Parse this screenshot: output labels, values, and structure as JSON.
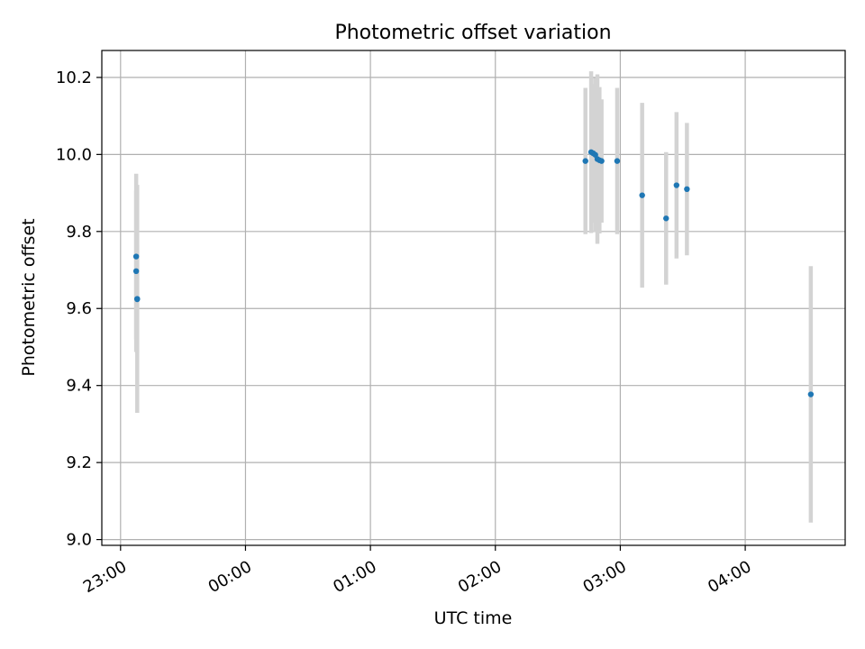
{
  "chart_data": {
    "type": "scatter",
    "title": "Photometric offset variation",
    "xlabel": "UTC time",
    "ylabel": "Photometric offset",
    "xlim": [
      "22:51",
      "04:48"
    ],
    "ylim": [
      8.985,
      10.27
    ],
    "x_ticks": [
      "23:00",
      "00:00",
      "01:00",
      "02:00",
      "03:00",
      "04:00"
    ],
    "y_ticks": [
      "9.0",
      "9.2",
      "9.4",
      "9.6",
      "9.8",
      "10.0",
      "10.2"
    ],
    "grid": true,
    "point_color": "#1f77b4",
    "errorbar_color": "#d3d3d3",
    "points": [
      {
        "t": "23:07:30",
        "y": 9.735,
        "err": 0.215
      },
      {
        "t": "23:07:30",
        "y": 9.697,
        "err": 0.21
      },
      {
        "t": "23:08:00",
        "y": 9.625,
        "err": 0.296
      },
      {
        "t": "23:08:00",
        "y": 9.624,
        "err": 0.14
      },
      {
        "t": "02:43:15",
        "y": 9.983,
        "err": 0.19
      },
      {
        "t": "02:46:00",
        "y": 10.006,
        "err": 0.21
      },
      {
        "t": "02:47:00",
        "y": 10.003,
        "err": 0.18
      },
      {
        "t": "02:48:00",
        "y": 9.999,
        "err": 0.2
      },
      {
        "t": "02:49:00",
        "y": 9.988,
        "err": 0.22
      },
      {
        "t": "02:50:00",
        "y": 9.985,
        "err": 0.19
      },
      {
        "t": "02:51:00",
        "y": 9.983,
        "err": 0.16
      },
      {
        "t": "02:58:30",
        "y": 9.983,
        "err": 0.19
      },
      {
        "t": "03:10:30",
        "y": 9.894,
        "err": 0.24
      },
      {
        "t": "03:22:00",
        "y": 9.834,
        "err": 0.172
      },
      {
        "t": "03:27:00",
        "y": 9.92,
        "err": 0.19
      },
      {
        "t": "03:32:00",
        "y": 9.91,
        "err": 0.172
      },
      {
        "t": "04:31:30",
        "y": 9.377,
        "err": 0.333
      }
    ]
  }
}
